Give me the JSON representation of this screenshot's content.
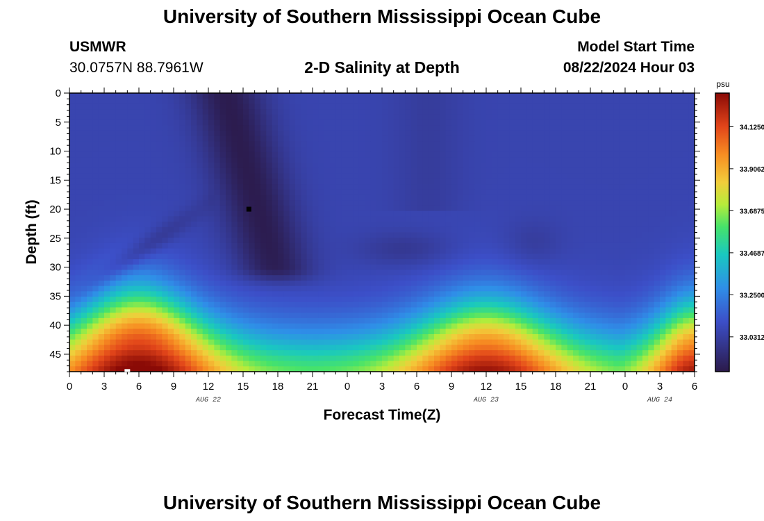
{
  "page": {
    "title": "University of Southern Mississippi Ocean Cube",
    "station": "USMWR",
    "coords": "30.0757N  88.7961W",
    "subtitle": "2-D Salinity at Depth",
    "model_label": "Model Start Time",
    "model_time": "08/22/2024 Hour 03",
    "footer_title": "University of Southern Mississippi Ocean Cube"
  },
  "chart_data": {
    "type": "heatmap",
    "title": "2-D Salinity at Depth",
    "xlabel": "Forecast Time(Z)",
    "ylabel": "Depth (ft)",
    "x_range_hours": [
      0,
      54
    ],
    "y_range_ft": [
      0,
      48
    ],
    "y_inverted": true,
    "x_ticks": [
      "0",
      "3",
      "6",
      "9",
      "12",
      "15",
      "18",
      "21",
      "0",
      "3",
      "6",
      "9",
      "12",
      "15",
      "18",
      "21",
      "0",
      "3",
      "6"
    ],
    "y_ticks": [
      "0",
      "5",
      "10",
      "15",
      "20",
      "25",
      "30",
      "35",
      "40",
      "45"
    ],
    "date_labels": [
      {
        "label": "AUG 22",
        "hour": 12
      },
      {
        "label": "AUG 23",
        "hour": 36
      },
      {
        "label": "AUG 24",
        "hour": 51
      }
    ],
    "colorbar": {
      "unit": "psu",
      "min": 32.85,
      "max": 34.3,
      "tick_labels": [
        "34.1250",
        "33.9062",
        "33.6875",
        "33.4687",
        "33.2500",
        "33.0312"
      ],
      "tick_values": [
        34.125,
        33.90625,
        33.6875,
        33.46875,
        33.25,
        33.03125
      ],
      "colors": [
        "#2b1a4a",
        "#3c4fc8",
        "#2f8ee8",
        "#19c8c0",
        "#46e36a",
        "#b6ec3b",
        "#f2cd3b",
        "#f78d22",
        "#e2451a",
        "#8a0a06"
      ],
      "stops": [
        0.0,
        0.18,
        0.3,
        0.42,
        0.52,
        0.6,
        0.68,
        0.78,
        0.88,
        1.0
      ]
    },
    "salinity_model": {
      "surface_psu": 33.08,
      "thermocline_center_ft": 44,
      "deep_psu_max": 34.25,
      "high_salinity_hours": [
        6,
        36,
        54
      ],
      "low_salinity_core_hours": [
        15,
        17
      ],
      "low_salinity_core_psu": 32.9
    },
    "markers": [
      {
        "hour": 15.5,
        "depth_ft": 20,
        "color": "#000000"
      },
      {
        "hour": 5,
        "depth_ft": 47.8,
        "color": "#ffffff"
      }
    ],
    "grid": false
  }
}
